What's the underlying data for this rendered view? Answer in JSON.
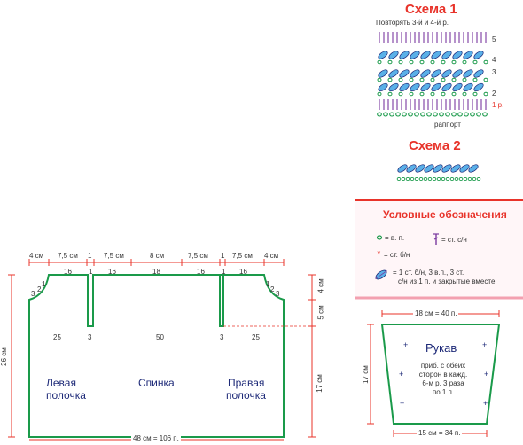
{
  "scheme1": {
    "title": "Схема 1",
    "repeat_note": "Повторять 3-й и 4-й р.",
    "row_numbers": [
      "5",
      "4",
      "3",
      "2",
      "1 р."
    ],
    "rapport_label": "раппорт"
  },
  "scheme2": {
    "title": "Схема 2"
  },
  "legend": {
    "title": "Условные обозначения",
    "items": {
      "chain": "= в. п.",
      "dc": "= ст. с/н",
      "sc": "= ст. б/н",
      "cluster_line1": "= 1 ст. б/н, 3 в.п., 3 ст.",
      "cluster_line2": "с/н из 1 п. и закрытые вместе"
    }
  },
  "body_pattern": {
    "top_dims": [
      "4 см",
      "7,5 см",
      "1",
      "7,5 см",
      "8 см",
      "7,5 см",
      "1",
      "7,5 см",
      "4 см"
    ],
    "top_counts": [
      "16",
      "1",
      "16",
      "18",
      "16",
      "1",
      "16"
    ],
    "left_dim": "26 см",
    "right_dims": [
      "4 см",
      "5 см",
      "17 см"
    ],
    "bottom_dim": "48 см = 106 п.",
    "neck_counts": [
      "3",
      "2",
      "1",
      "1",
      "2",
      "3"
    ],
    "row_counts": [
      "25",
      "3",
      "50",
      "3",
      "25"
    ],
    "left_front_line1": "Левая",
    "left_front_line2": "полочка",
    "back": "Спинка",
    "right_front_line1": "Правая",
    "right_front_line2": "полочка"
  },
  "sleeve": {
    "top_dim": "18 см = 40 п.",
    "side_dim": "17 см",
    "bottom_dim": "15 см = 34 п.",
    "title": "Рукав",
    "note": [
      "приб. с обеих",
      "сторон в кажд.",
      "6-м р. 3 раза",
      "по 1 п."
    ]
  },
  "colors": {
    "red": "#e8332a",
    "blue": "#1e2a78",
    "green": "#1a9a4a",
    "pink": "#ffe8ee",
    "legend_border": "#e8332a"
  }
}
